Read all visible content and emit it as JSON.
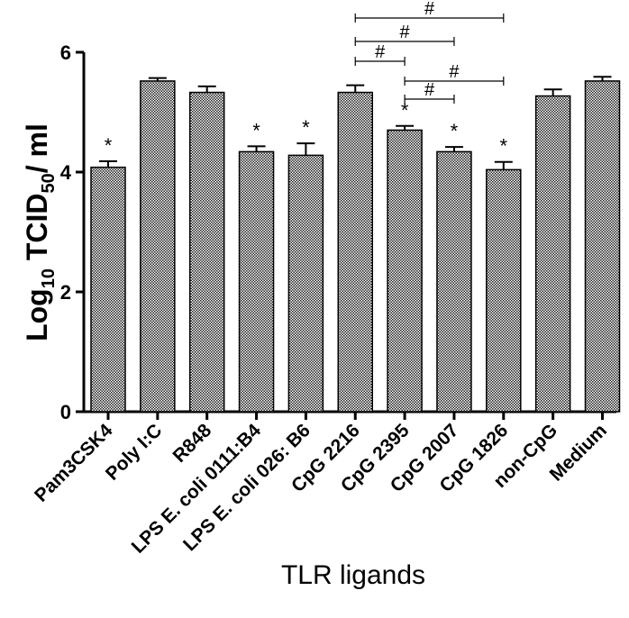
{
  "chart_data": {
    "type": "bar",
    "title": "",
    "xlabel": "TLR ligands",
    "ylabel": {
      "main": "Log",
      "sub1": "10",
      "mid": " TCID",
      "sub2": "50",
      "end": "/ ml"
    },
    "ylim": [
      0,
      6
    ],
    "yticks": [
      "0",
      "2",
      "4",
      "6"
    ],
    "categories": [
      "Pam3CSK4",
      "Poly I:C",
      "R848",
      "LPS E. coli 0111:B4",
      "LPS E. coli 026: B6",
      "CpG 2216",
      "CpG 2395",
      "CpG 2007",
      "CpG 1826",
      "non-CpG",
      "Medium"
    ],
    "values": [
      4.08,
      5.52,
      5.33,
      4.34,
      4.28,
      5.33,
      4.7,
      4.34,
      4.04,
      5.27,
      5.52
    ],
    "errors": [
      0.1,
      0.05,
      0.1,
      0.09,
      0.2,
      0.12,
      0.07,
      0.08,
      0.13,
      0.11,
      0.07
    ],
    "significance_marks": [
      "*",
      "",
      "",
      "*",
      "*",
      "",
      "*",
      "*",
      "*",
      "",
      ""
    ],
    "brackets": [
      {
        "from": "CpG 2216",
        "to": "CpG 1826",
        "label": "#"
      },
      {
        "from": "CpG 2216",
        "to": "CpG 2007",
        "label": "#"
      },
      {
        "from": "CpG 2216",
        "to": "CpG 2395",
        "label": "#"
      },
      {
        "from": "CpG 2395",
        "to": "CpG 1826",
        "label": "#"
      },
      {
        "from": "CpG 2395",
        "to": "CpG 2007",
        "label": "#"
      }
    ],
    "colors": {
      "bar_fill": "#b8b8b8",
      "bar_stroke": "#000000",
      "axis": "#000000"
    }
  }
}
